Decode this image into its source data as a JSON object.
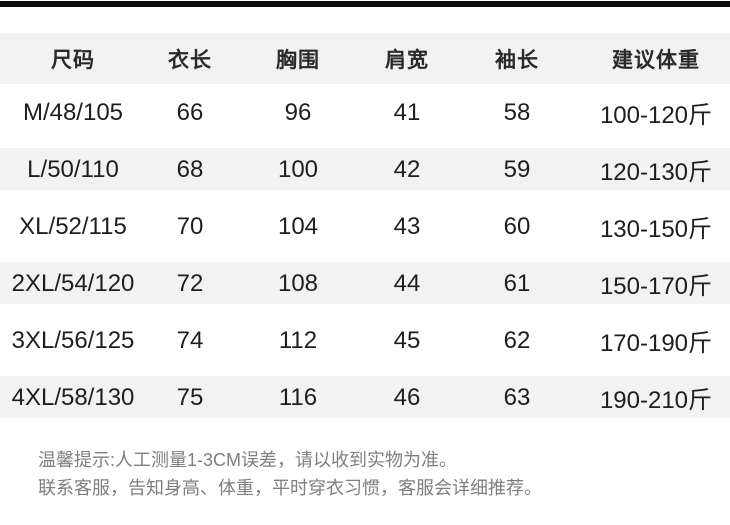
{
  "theme": {
    "accent_bar_color": "#0b0b0b",
    "stripe_color": "#f2f2f2",
    "text_color": "#1e1e1e",
    "footer_text_color": "#7f7f7f"
  },
  "size_chart": {
    "columns": [
      "尺码",
      "衣长",
      "胸围",
      "肩宽",
      "袖长",
      "建议体重"
    ],
    "rows": [
      [
        "M/48/105",
        "66",
        "96",
        "41",
        "58",
        "100-120斤"
      ],
      [
        "L/50/110",
        "68",
        "100",
        "42",
        "59",
        "120-130斤"
      ],
      [
        "XL/52/115",
        "70",
        "104",
        "43",
        "60",
        "130-150斤"
      ],
      [
        "2XL/54/120",
        "72",
        "108",
        "44",
        "61",
        "150-170斤"
      ],
      [
        "3XL/56/125",
        "74",
        "112",
        "45",
        "62",
        "170-190斤"
      ],
      [
        "4XL/58/130",
        "75",
        "116",
        "46",
        "63",
        "190-210斤"
      ]
    ]
  },
  "footer": {
    "line1": "温馨提示:人工测量1-3CM误差，请以收到实物为准。",
    "line2": "联系客服，告知身高、体重，平时穿衣习惯，客服会详细推荐。"
  }
}
